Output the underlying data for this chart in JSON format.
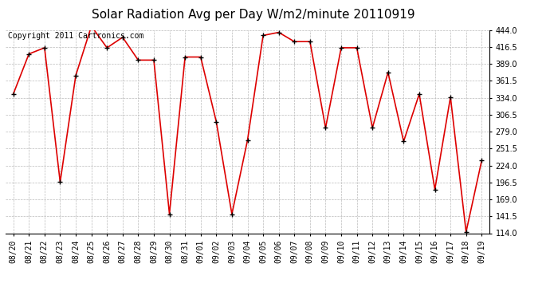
{
  "title": "Solar Radiation Avg per Day W/m2/minute 20110919",
  "copyright": "Copyright 2011 Cartronics.com",
  "dates": [
    "08/20",
    "08/21",
    "08/22",
    "08/23",
    "08/24",
    "08/25",
    "08/26",
    "08/27",
    "08/28",
    "08/29",
    "08/30",
    "08/31",
    "09/01",
    "09/02",
    "09/03",
    "09/04",
    "09/05",
    "09/06",
    "09/07",
    "09/08",
    "09/09",
    "09/10",
    "09/11",
    "09/12",
    "09/13",
    "09/14",
    "09/15",
    "09/16",
    "09/17",
    "09/18",
    "09/19"
  ],
  "values": [
    340,
    405,
    415,
    197,
    370,
    450,
    415,
    432,
    395,
    395,
    145,
    400,
    400,
    295,
    145,
    265,
    435,
    440,
    425,
    425,
    285,
    415,
    415,
    285,
    375,
    263,
    340,
    185,
    335,
    116,
    232
  ],
  "line_color": "#dd0000",
  "marker_color": "#000000",
  "ylim": [
    114.0,
    444.0
  ],
  "yticks": [
    114.0,
    141.5,
    169.0,
    196.5,
    224.0,
    251.5,
    279.0,
    306.5,
    334.0,
    361.5,
    389.0,
    416.5,
    444.0
  ],
  "bg_color": "#ffffff",
  "grid_color": "#bbbbbb",
  "title_fontsize": 11,
  "copyright_fontsize": 7,
  "tick_fontsize": 7
}
